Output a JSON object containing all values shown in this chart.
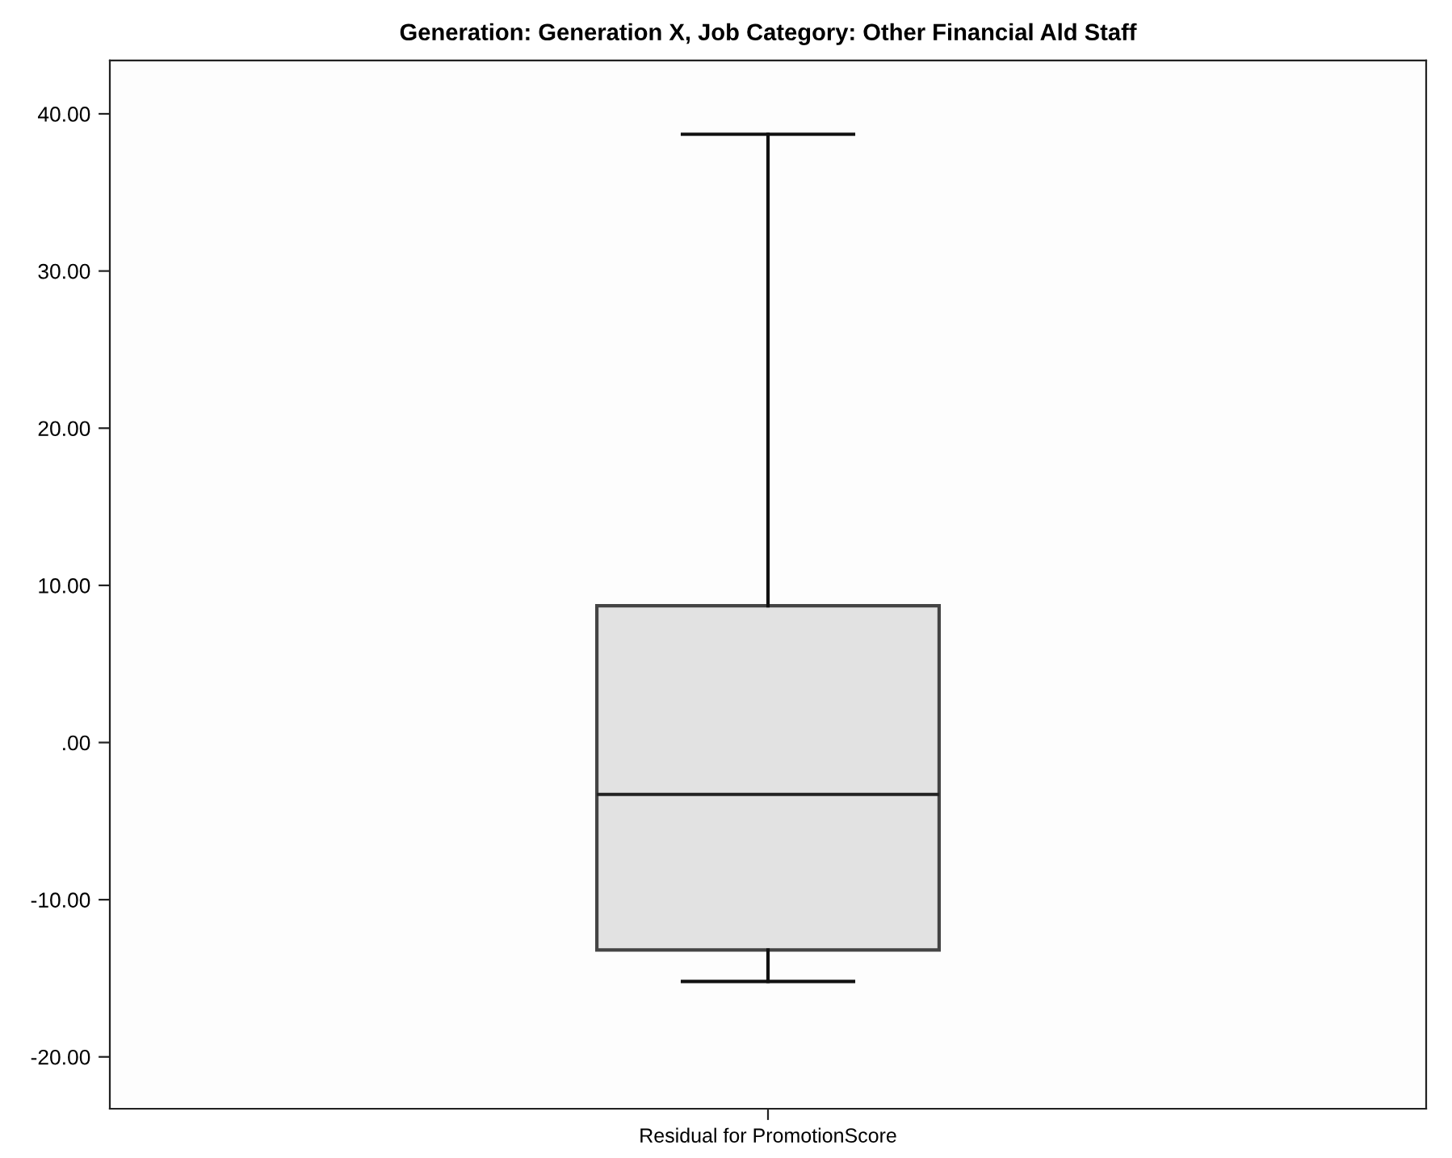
{
  "chart_data": {
    "type": "box",
    "title": "Generation: Generation X, Job Category: Other Financial Ald Staff",
    "categories": [
      "Residual for PromotionScore"
    ],
    "boxes": [
      {
        "low": -15.2,
        "q1": -13.2,
        "median": -3.3,
        "q3": 8.7,
        "high": 38.7
      }
    ],
    "color": "#e2e2e2",
    "ylim": [
      -23.3,
      43.4
    ],
    "yticks": [
      {
        "value": -20,
        "label": "-20.00"
      },
      {
        "value": -10,
        "label": "-10.00"
      },
      {
        "value": 0,
        "label": ".00"
      },
      {
        "value": 10,
        "label": "10.00"
      },
      {
        "value": 20,
        "label": "20.00"
      },
      {
        "value": 30,
        "label": "30.00"
      },
      {
        "value": 40,
        "label": "40.00"
      }
    ],
    "grid": false
  }
}
